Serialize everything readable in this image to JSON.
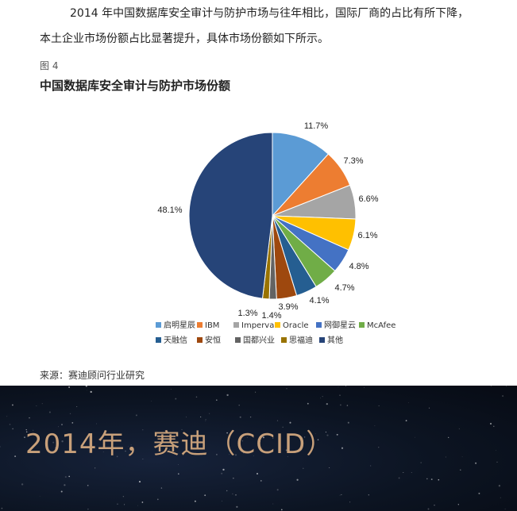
{
  "document": {
    "paragraph_line1": "2014 年中国数据库安全审计与防护市场与往年相比，国际厂商的占比有所下降，",
    "paragraph_line2": "本土企业市场份额占比显著提升，具体市场份额如下所示。",
    "figure_label": "图 4",
    "chart_title": "中国数据库安全审计与防护市场份额",
    "source": "来源：赛迪顾问行业研究"
  },
  "banner": {
    "text": "2014年，赛迪（CCID）"
  },
  "chart_data": {
    "type": "pie",
    "title": "中国数据库安全审计与防护市场份额",
    "legend_position": "bottom",
    "slices": [
      {
        "name": "启明星辰",
        "value": 11.7,
        "label": "11.7%",
        "color": "#5b9bd5"
      },
      {
        "name": "IBM",
        "value": 7.3,
        "label": "7.3%",
        "color": "#ed7d31"
      },
      {
        "name": "Imperva",
        "value": 6.6,
        "label": "6.6%",
        "color": "#a5a5a5"
      },
      {
        "name": "Oracle",
        "value": 6.1,
        "label": "6.1%",
        "color": "#ffc000"
      },
      {
        "name": "网御星云",
        "value": 4.8,
        "label": "4.8%",
        "color": "#4472c4"
      },
      {
        "name": "McAfee",
        "value": 4.7,
        "label": "4.7%",
        "color": "#70ad47"
      },
      {
        "name": "天融信",
        "value": 4.1,
        "label": "4.1%",
        "color": "#255e91"
      },
      {
        "name": "安恒",
        "value": 3.9,
        "label": "3.9%",
        "color": "#9e480e"
      },
      {
        "name": "国都兴业",
        "value": 1.4,
        "label": "1.4%",
        "color": "#636363"
      },
      {
        "name": "思福迪",
        "value": 1.3,
        "label": "1.3%",
        "color": "#997300"
      },
      {
        "name": "其他",
        "value": 48.1,
        "label": "48.1%",
        "color": "#264478"
      }
    ]
  }
}
